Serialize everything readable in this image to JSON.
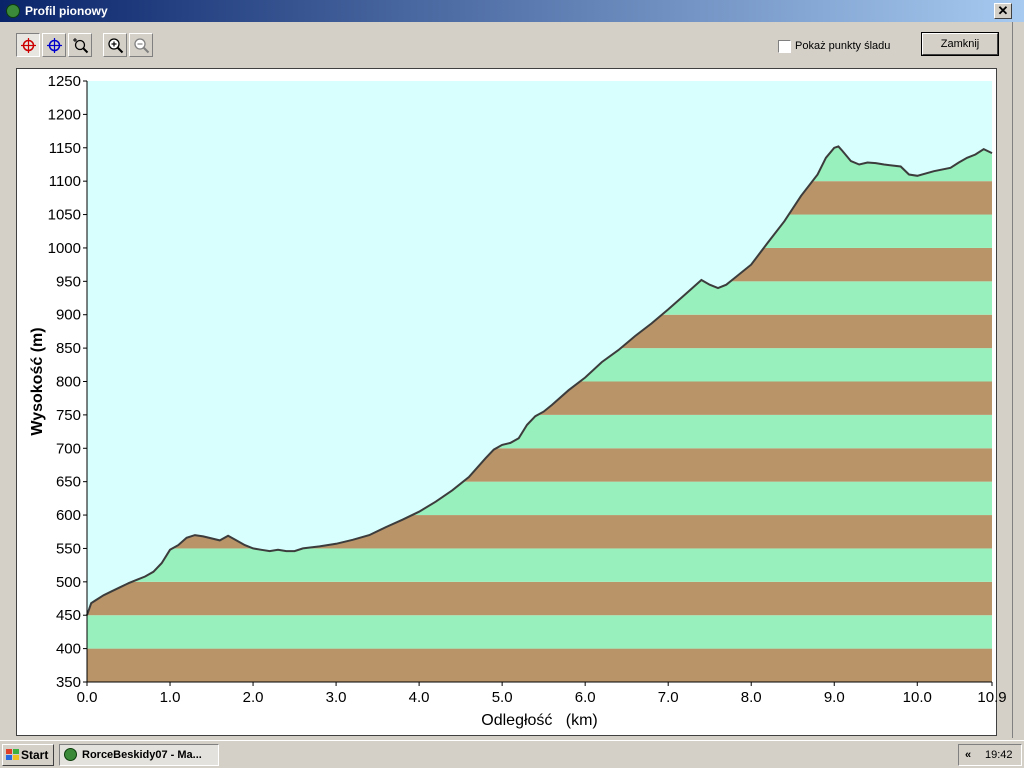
{
  "window": {
    "title": "Profil pionowy",
    "close_glyph": "✕"
  },
  "toolbar": {
    "tools": [
      {
        "name": "red-crosshair-icon",
        "pressed": true
      },
      {
        "name": "blue-crosshair-icon",
        "pressed": false
      },
      {
        "name": "zoom-area-icon",
        "pressed": false
      },
      {
        "name": "zoom-in-icon",
        "pressed": false
      },
      {
        "name": "zoom-out-icon",
        "pressed": false
      }
    ],
    "checkbox_label": "Pokaż punkty śladu",
    "checkbox_checked": false,
    "close_button_label": "Zamknij"
  },
  "colors": {
    "sky": "#d8fefe",
    "band_brown": "#b89468",
    "band_green": "#98f0bc",
    "profile_line": "#3c3c3c"
  },
  "chart_data": {
    "type": "area",
    "xlabel": "Odległość   (km)",
    "ylabel": "Wysokość (m)",
    "xlim": [
      0,
      10.9
    ],
    "ylim": [
      350,
      1250
    ],
    "x_ticks": [
      "0.0",
      "1.0",
      "2.0",
      "3.0",
      "4.0",
      "5.0",
      "6.0",
      "7.0",
      "8.0",
      "9.0",
      "10.0",
      "10.9"
    ],
    "y_ticks": [
      350,
      400,
      450,
      500,
      550,
      600,
      650,
      700,
      750,
      800,
      850,
      900,
      950,
      1000,
      1050,
      1100,
      1150,
      1200,
      1250
    ],
    "band_height": 50,
    "series": [
      {
        "x": [
          0.0,
          0.05,
          0.1,
          0.2,
          0.3,
          0.4,
          0.5,
          0.6,
          0.7,
          0.8,
          0.9,
          1.0,
          1.1,
          1.2,
          1.3,
          1.4,
          1.5,
          1.6,
          1.7,
          1.8,
          1.9,
          2.0,
          2.1,
          2.2,
          2.3,
          2.4,
          2.5,
          2.6,
          2.8,
          3.0,
          3.2,
          3.4,
          3.6,
          3.8,
          4.0,
          4.2,
          4.4,
          4.6,
          4.8,
          4.9,
          5.0,
          5.1,
          5.2,
          5.3,
          5.4,
          5.5,
          5.6,
          5.8,
          6.0,
          6.2,
          6.4,
          6.6,
          6.8,
          7.0,
          7.2,
          7.4,
          7.5,
          7.6,
          7.7,
          7.8,
          8.0,
          8.2,
          8.4,
          8.6,
          8.8,
          8.9,
          9.0,
          9.05,
          9.1,
          9.2,
          9.3,
          9.4,
          9.5,
          9.6,
          9.8,
          9.9,
          10.0,
          10.2,
          10.4,
          10.5,
          10.6,
          10.7,
          10.8,
          10.9
        ],
        "values": [
          450,
          468,
          472,
          480,
          486,
          492,
          498,
          503,
          508,
          515,
          528,
          548,
          555,
          566,
          570,
          568,
          565,
          562,
          569,
          562,
          555,
          550,
          548,
          546,
          548,
          546,
          546,
          550,
          553,
          557,
          563,
          570,
          582,
          593,
          605,
          620,
          637,
          657,
          685,
          698,
          705,
          708,
          715,
          735,
          748,
          755,
          765,
          787,
          806,
          829,
          847,
          868,
          887,
          908,
          930,
          952,
          945,
          940,
          945,
          955,
          975,
          1008,
          1040,
          1078,
          1110,
          1135,
          1150,
          1152,
          1145,
          1130,
          1125,
          1128,
          1127,
          1125,
          1122,
          1110,
          1108,
          1115,
          1120,
          1128,
          1135,
          1140,
          1148,
          1142
        ]
      }
    ],
    "grid": false,
    "legend": "none"
  },
  "taskbar": {
    "start_label": "Start",
    "task_label": "RorceBeskidy07 - Ma...",
    "tray_chevron": "«",
    "clock": "19:42"
  }
}
